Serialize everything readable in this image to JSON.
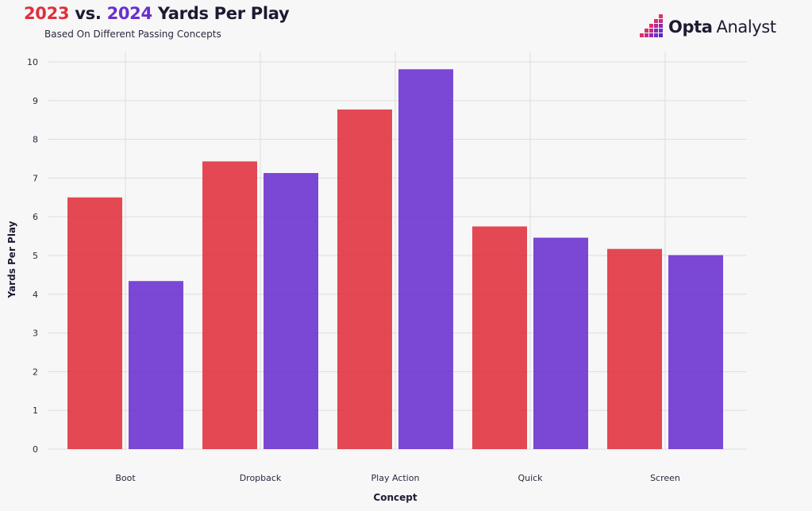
{
  "header": {
    "title_year_a": "2023",
    "title_vs": "vs.",
    "title_year_b": "2024",
    "title_rest": "Yards Per Play",
    "subtitle": "Based On Different Passing Concepts"
  },
  "brand": {
    "name_bold": "Opta",
    "name_light": "Analyst",
    "logo_icon": "pixel-stairs-logo-icon"
  },
  "colors": {
    "series_2023": "#e0303c",
    "series_2024": "#6a2fd0",
    "background": "#f7f7f7",
    "grid": "#dddddd"
  },
  "chart_data": {
    "type": "bar",
    "title": "2023 vs. 2024 Yards Per Play",
    "subtitle": "Based On Different Passing Concepts",
    "xlabel": "Concept",
    "ylabel": "Yards Per Play",
    "categories": [
      "Boot",
      "Dropback",
      "Play Action",
      "Quick",
      "Screen"
    ],
    "series": [
      {
        "name": "2023",
        "color": "#e0303c",
        "values": [
          6.5,
          7.43,
          8.77,
          5.75,
          5.17
        ]
      },
      {
        "name": "2024",
        "color": "#6a2fd0",
        "values": [
          4.34,
          7.13,
          9.81,
          5.46,
          5.01
        ]
      }
    ],
    "ylim": [
      0,
      10
    ],
    "yticks": [
      0,
      1,
      2,
      3,
      4,
      5,
      6,
      7,
      8,
      9,
      10
    ],
    "grid": true,
    "legend": "in title"
  }
}
